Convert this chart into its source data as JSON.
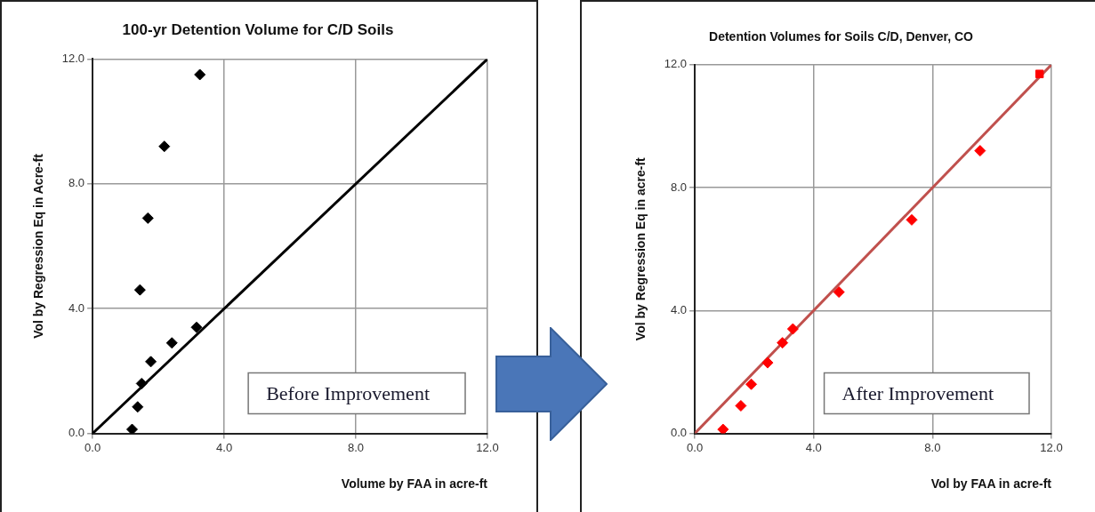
{
  "chart_data": [
    {
      "type": "scatter",
      "title": "100-yr Detention Volume for C/D Soils",
      "xlabel": "Volume by FAA in acre-ft",
      "ylabel": "Vol by Regression Eq in Acre-ft",
      "xlim": [
        0,
        12
      ],
      "ylim": [
        0,
        12
      ],
      "xticks": [
        {
          "value": 0,
          "label": "0.0"
        },
        {
          "value": 4,
          "label": "4.0"
        },
        {
          "value": 8,
          "label": "8.0"
        },
        {
          "value": 12,
          "label": "12.0"
        }
      ],
      "yticks": [
        {
          "value": 0,
          "label": "0.0"
        },
        {
          "value": 4,
          "label": "4.0"
        },
        {
          "value": 8,
          "label": "8.0"
        },
        {
          "value": 12,
          "label": "12.0"
        }
      ],
      "grid": true,
      "legend": false,
      "annotations": [
        "Before Improvement"
      ],
      "series": [
        {
          "type": "scatter",
          "marker": "diamond",
          "color": "#000000",
          "x": [
            3.26,
            2.18,
            1.68,
            1.44,
            3.16,
            2.41,
            1.77,
            1.49,
            1.37,
            1.2
          ],
          "values": [
            11.5,
            9.2,
            6.9,
            4.6,
            3.4,
            2.9,
            2.3,
            1.6,
            0.85,
            0.13
          ]
        },
        {
          "type": "line",
          "marker": "none",
          "color": "#000000",
          "x": [
            0,
            12
          ],
          "values": [
            0,
            12
          ]
        }
      ]
    },
    {
      "type": "scatter",
      "title": "Detention Volumes for Soils C/D, Denver, CO",
      "xlabel": "Vol by FAA in acre-ft",
      "ylabel": "Vol by Regression Eq in acre-ft",
      "xlim": [
        0,
        12
      ],
      "ylim": [
        0,
        12
      ],
      "xticks": [
        {
          "value": 0,
          "label": "0.0"
        },
        {
          "value": 4,
          "label": "4.0"
        },
        {
          "value": 8,
          "label": "8.0"
        },
        {
          "value": 12,
          "label": "12.0"
        }
      ],
      "yticks": [
        {
          "value": 0,
          "label": "0.0"
        },
        {
          "value": 4,
          "label": "4.0"
        },
        {
          "value": 8,
          "label": "8.0"
        },
        {
          "value": 12,
          "label": "12.0"
        }
      ],
      "grid": true,
      "legend": false,
      "annotations": [
        "After Improvement"
      ],
      "series": [
        {
          "type": "scatter",
          "marker": "diamond",
          "color": "#ff0000",
          "x": [
            9.6,
            7.3,
            4.85,
            3.3,
            2.95,
            2.45,
            1.9,
            1.55,
            0.95
          ],
          "values": [
            9.2,
            6.95,
            4.6,
            3.4,
            2.95,
            2.3,
            1.6,
            0.9,
            0.13
          ]
        },
        {
          "type": "scatter",
          "marker": "square",
          "color": "#ff0000",
          "x": [
            11.6
          ],
          "values": [
            11.7
          ]
        },
        {
          "type": "line",
          "marker": "none",
          "color": "#c0504d",
          "x": [
            0,
            12
          ],
          "values": [
            0,
            12
          ]
        }
      ]
    }
  ]
}
